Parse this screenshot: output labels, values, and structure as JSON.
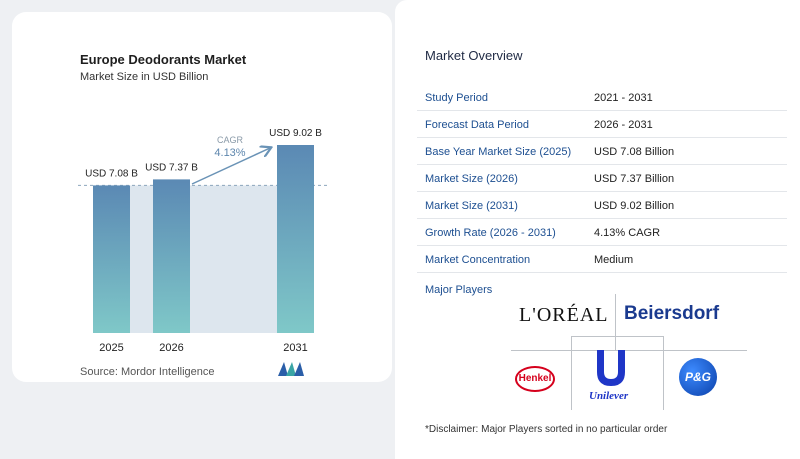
{
  "chart_card": {
    "title": "Europe Deodorants Market",
    "subtitle": "Market Size in USD Billion",
    "source": "Source:  Mordor Intelligence"
  },
  "chart_data": {
    "type": "bar",
    "categories": [
      "2025",
      "2026",
      "2031"
    ],
    "values": [
      7.08,
      7.37,
      9.02
    ],
    "value_labels": [
      "USD 7.08 B",
      "USD 7.37 B",
      "USD 9.02 B"
    ],
    "title": "Europe Deodorants Market",
    "subtitle": "Market Size in USD Billion",
    "annotation": {
      "label": "CAGR",
      "value": "4.13%"
    },
    "grid": false,
    "colors": {
      "bar_top": "#5b89b4",
      "bar_bottom": "#7fc8c8",
      "band": "#dde6ee",
      "arrow": "#6a93b6"
    }
  },
  "overview": {
    "title": "Market Overview",
    "rows": [
      {
        "label": "Study Period",
        "value": "2021 - 2031"
      },
      {
        "label": "Forecast Data Period",
        "value": "2026 - 2031"
      },
      {
        "label": "Base Year Market Size (2025)",
        "value": "USD 7.08 Billion"
      },
      {
        "label": "Market Size (2026)",
        "value": "USD 7.37 Billion"
      },
      {
        "label": "Market Size (2031)",
        "value": "USD 9.02 Billion"
      },
      {
        "label": "Growth Rate (2026 - 2031)",
        "value": "4.13% CAGR"
      },
      {
        "label": "Market Concentration",
        "value": "Medium"
      }
    ],
    "major_players_title": "Major Players",
    "players": {
      "loreal": "L'ORÉAL",
      "beiersdorf": "Beiersdorf",
      "henkel": "Henkel",
      "unilever": "Unilever",
      "pg": "P&G"
    },
    "disclaimer": "*Disclaimer: Major Players sorted in no particular order"
  }
}
